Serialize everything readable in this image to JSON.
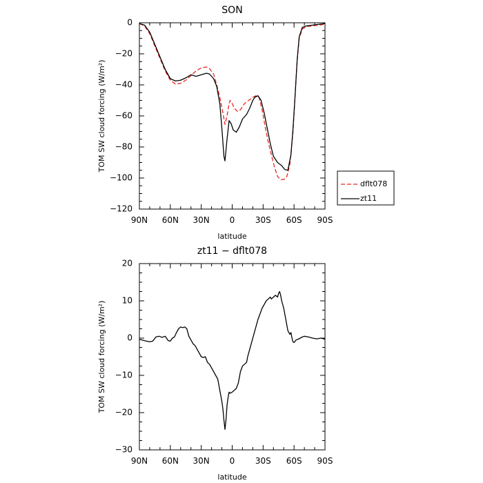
{
  "chart_data": [
    {
      "type": "line",
      "title": "SON",
      "xlabel": "latitude",
      "ylabel": "TOM SW cloud forcing (W/m²)",
      "xlim": [
        90,
        -90
      ],
      "ylim": [
        -120,
        0
      ],
      "x_ticks": [
        90,
        60,
        30,
        0,
        -30,
        -60,
        -90
      ],
      "x_tick_labels": [
        "90N",
        "60N",
        "30N",
        "0",
        "30S",
        "60S",
        "90S"
      ],
      "y_ticks": [
        0,
        -20,
        -40,
        -60,
        -80,
        -100,
        -120
      ],
      "y_tick_labels": [
        "0",
        "−20",
        "−40",
        "−60",
        "−80",
        "−100",
        "−120"
      ],
      "legend_position": "right",
      "series": [
        {
          "name": "dflt078",
          "color": "#e8251f",
          "dash": true,
          "points": [
            [
              90,
              -0.5
            ],
            [
              85,
              -2
            ],
            [
              80,
              -7
            ],
            [
              75,
              -15
            ],
            [
              70,
              -23
            ],
            [
              65,
              -31
            ],
            [
              60,
              -37
            ],
            [
              55,
              -39.5
            ],
            [
              50,
              -39
            ],
            [
              45,
              -37
            ],
            [
              40,
              -34
            ],
            [
              35,
              -31
            ],
            [
              30,
              -29
            ],
            [
              25,
              -28.5
            ],
            [
              22,
              -29.5
            ],
            [
              18,
              -33
            ],
            [
              15,
              -40
            ],
            [
              12,
              -48
            ],
            [
              9,
              -58
            ],
            [
              7,
              -65.5
            ],
            [
              5,
              -60
            ],
            [
              3,
              -52
            ],
            [
              2,
              -50
            ],
            [
              0,
              -52
            ],
            [
              -2,
              -55
            ],
            [
              -5,
              -57
            ],
            [
              -8,
              -56
            ],
            [
              -12,
              -52
            ],
            [
              -16,
              -50
            ],
            [
              -20,
              -48
            ],
            [
              -23,
              -47
            ],
            [
              -26,
              -48
            ],
            [
              -29,
              -56
            ],
            [
              -32,
              -67
            ],
            [
              -35,
              -77
            ],
            [
              -38,
              -85
            ],
            [
              -41,
              -93
            ],
            [
              -44,
              -99
            ],
            [
              -47,
              -101
            ],
            [
              -50,
              -101
            ],
            [
              -53,
              -99
            ],
            [
              -56,
              -91
            ],
            [
              -59,
              -70
            ],
            [
              -61,
              -47
            ],
            [
              -63,
              -25
            ],
            [
              -65,
              -10
            ],
            [
              -68,
              -4
            ],
            [
              -72,
              -2.5
            ],
            [
              -78,
              -2
            ],
            [
              -84,
              -1.5
            ],
            [
              -90,
              -1
            ]
          ]
        },
        {
          "name": "zt11",
          "color": "#000000",
          "dash": false,
          "points": [
            [
              90,
              -0.5
            ],
            [
              85,
              -1.5
            ],
            [
              80,
              -6
            ],
            [
              75,
              -14
            ],
            [
              70,
              -22
            ],
            [
              65,
              -30
            ],
            [
              60,
              -36
            ],
            [
              55,
              -37.5
            ],
            [
              50,
              -37
            ],
            [
              45,
              -35.5
            ],
            [
              40,
              -33.5
            ],
            [
              35,
              -34.5
            ],
            [
              30,
              -33.5
            ],
            [
              25,
              -32.5
            ],
            [
              22,
              -33
            ],
            [
              18,
              -36
            ],
            [
              15,
              -41
            ],
            [
              12,
              -52
            ],
            [
              10,
              -68
            ],
            [
              8,
              -86
            ],
            [
              7,
              -89
            ],
            [
              5,
              -75
            ],
            [
              3,
              -63
            ],
            [
              1,
              -65
            ],
            [
              -1,
              -69
            ],
            [
              -4,
              -70.5
            ],
            [
              -7,
              -67
            ],
            [
              -10,
              -62
            ],
            [
              -14,
              -59
            ],
            [
              -17,
              -55
            ],
            [
              -20,
              -50
            ],
            [
              -22,
              -48
            ],
            [
              -25,
              -47
            ],
            [
              -28,
              -50
            ],
            [
              -31,
              -58
            ],
            [
              -34,
              -68
            ],
            [
              -37,
              -78
            ],
            [
              -40,
              -86
            ],
            [
              -44,
              -90
            ],
            [
              -48,
              -92
            ],
            [
              -51,
              -94.5
            ],
            [
              -54,
              -95
            ],
            [
              -57,
              -85
            ],
            [
              -59,
              -68
            ],
            [
              -61,
              -47
            ],
            [
              -63,
              -24
            ],
            [
              -65,
              -9
            ],
            [
              -68,
              -3
            ],
            [
              -72,
              -2
            ],
            [
              -78,
              -1.5
            ],
            [
              -84,
              -1
            ],
            [
              -90,
              -0.5
            ]
          ]
        }
      ]
    },
    {
      "type": "line",
      "title": "zt11 − dflt078",
      "xlabel": "latitude",
      "ylabel": "TOM SW cloud forcing (W/m²)",
      "xlim": [
        90,
        -90
      ],
      "ylim": [
        -30,
        20
      ],
      "x_ticks": [
        90,
        60,
        30,
        0,
        -30,
        -60,
        -90
      ],
      "x_tick_labels": [
        "90N",
        "60N",
        "30N",
        "0",
        "30S",
        "60S",
        "90S"
      ],
      "y_ticks": [
        20,
        10,
        0,
        -10,
        -20,
        -30
      ],
      "y_tick_labels": [
        "20",
        "10",
        "0",
        "−10",
        "−20",
        "−30"
      ],
      "series": [
        {
          "color": "#000000",
          "dash": false,
          "points": [
            [
              90,
              -0.3
            ],
            [
              85,
              -0.7
            ],
            [
              80,
              -1
            ],
            [
              77,
              -0.8
            ],
            [
              74,
              0.3
            ],
            [
              71,
              0.5
            ],
            [
              68,
              0.2
            ],
            [
              65,
              0.5
            ],
            [
              62,
              -0.7
            ],
            [
              60,
              -0.8
            ],
            [
              58,
              0
            ],
            [
              56,
              0.3
            ],
            [
              54,
              1.5
            ],
            [
              52,
              2.5
            ],
            [
              50,
              3
            ],
            [
              48,
              2.8
            ],
            [
              46,
              3
            ],
            [
              44,
              2.5
            ],
            [
              42,
              0.5
            ],
            [
              40,
              -0.5
            ],
            [
              38,
              -1.5
            ],
            [
              36,
              -2
            ],
            [
              34,
              -3
            ],
            [
              32,
              -4
            ],
            [
              30,
              -5
            ],
            [
              28,
              -5.2
            ],
            [
              26,
              -5
            ],
            [
              24,
              -6.5
            ],
            [
              22,
              -7
            ],
            [
              20,
              -8
            ],
            [
              18,
              -9
            ],
            [
              16,
              -10
            ],
            [
              14,
              -11
            ],
            [
              12,
              -14
            ],
            [
              10,
              -17
            ],
            [
              9,
              -19
            ],
            [
              8,
              -22
            ],
            [
              7,
              -24.5
            ],
            [
              6,
              -22
            ],
            [
              5,
              -18
            ],
            [
              4,
              -16
            ],
            [
              3,
              -14.5
            ],
            [
              2,
              -14.8
            ],
            [
              0,
              -14.5
            ],
            [
              -2,
              -14
            ],
            [
              -4,
              -13.5
            ],
            [
              -6,
              -12
            ],
            [
              -8,
              -9
            ],
            [
              -10,
              -7.5
            ],
            [
              -12,
              -7
            ],
            [
              -14,
              -6.5
            ],
            [
              -15,
              -5
            ],
            [
              -17,
              -3
            ],
            [
              -19,
              -1
            ],
            [
              -21,
              1
            ],
            [
              -23,
              3
            ],
            [
              -25,
              5
            ],
            [
              -27,
              6.5
            ],
            [
              -29,
              8
            ],
            [
              -31,
              9
            ],
            [
              -33,
              10
            ],
            [
              -35,
              10.5
            ],
            [
              -37,
              11
            ],
            [
              -38,
              10.5
            ],
            [
              -40,
              11
            ],
            [
              -42,
              11.5
            ],
            [
              -44,
              11
            ],
            [
              -45,
              12
            ],
            [
              -46,
              12.5
            ],
            [
              -47,
              11.5
            ],
            [
              -48,
              10
            ],
            [
              -50,
              8
            ],
            [
              -52,
              5
            ],
            [
              -54,
              2
            ],
            [
              -56,
              1
            ],
            [
              -57,
              1.5
            ],
            [
              -58,
              0
            ],
            [
              -59,
              -1
            ],
            [
              -60,
              -1.2
            ],
            [
              -62,
              -0.5
            ],
            [
              -64,
              -0.3
            ],
            [
              -66,
              0
            ],
            [
              -68,
              0.3
            ],
            [
              -70,
              0.5
            ],
            [
              -74,
              0.3
            ],
            [
              -78,
              0
            ],
            [
              -82,
              -0.2
            ],
            [
              -86,
              0
            ],
            [
              -90,
              -0.3
            ]
          ]
        }
      ]
    }
  ]
}
